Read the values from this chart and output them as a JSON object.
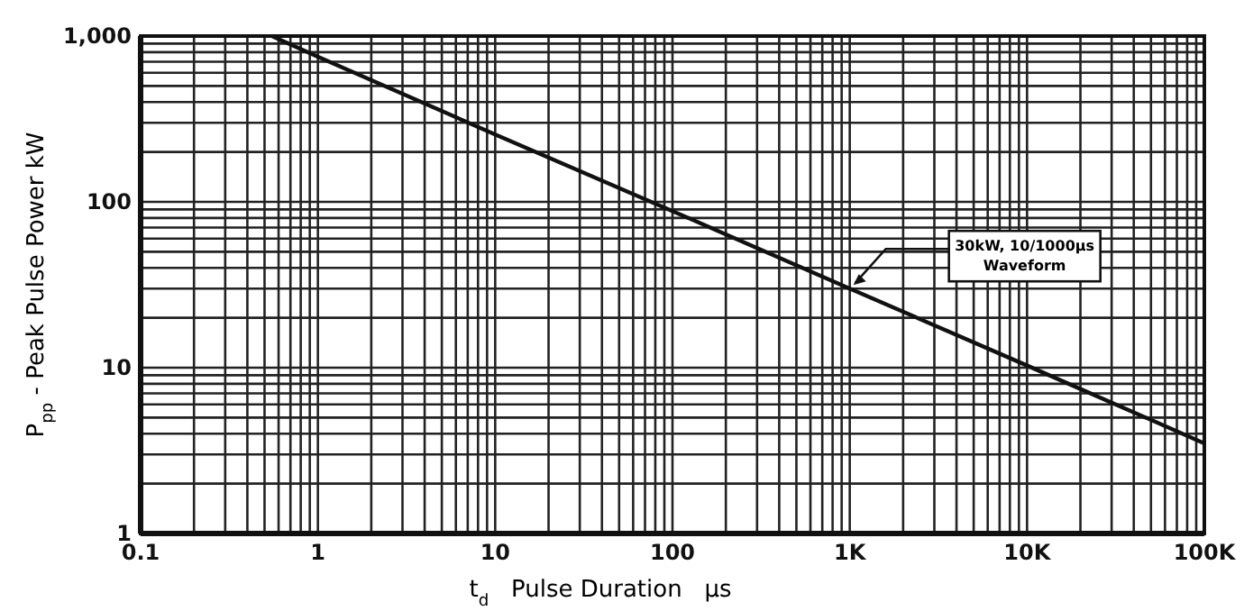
{
  "chart_data": {
    "type": "line",
    "xlabel": "t$_{d}$   Pulse Duration   µs",
    "ylabel": "P$_{pp}$ - Peak Pulse Power kW",
    "log": "xy",
    "grid": true,
    "marker": "none",
    "line_style": "solid",
    "xlim": [
      0.1,
      100000
    ],
    "ylim": [
      1,
      1000
    ],
    "xticks": [
      0.1,
      {
        "value": 0.2,
        "label": null
      },
      {
        "value": 0.3,
        "label": null
      },
      {
        "value": 0.4,
        "label": null
      },
      {
        "value": 0.5,
        "label": null
      },
      {
        "value": 0.6,
        "label": null
      },
      {
        "value": 0.7,
        "label": null
      },
      {
        "value": 0.8,
        "label": null
      },
      {
        "value": 0.9,
        "label": null
      },
      1,
      {
        "value": 2,
        "label": null
      },
      {
        "value": 3,
        "label": null
      },
      {
        "value": 4,
        "label": null
      },
      {
        "value": 5,
        "label": null
      },
      {
        "value": 6,
        "label": null
      },
      {
        "value": 7,
        "label": null
      },
      {
        "value": 8,
        "label": null
      },
      {
        "value": 9,
        "label": null
      },
      10,
      {
        "value": 20,
        "label": null
      },
      {
        "value": 30,
        "label": null
      },
      {
        "value": 40,
        "label": null
      },
      {
        "value": 50,
        "label": null
      },
      {
        "value": 60,
        "label": null
      },
      {
        "value": 70,
        "label": null
      },
      {
        "value": 80,
        "label": null
      },
      {
        "value": 90,
        "label": null
      },
      100,
      {
        "value": 200,
        "label": null
      },
      {
        "value": 300,
        "label": null
      },
      {
        "value": 400,
        "label": null
      },
      {
        "value": 500,
        "label": null
      },
      {
        "value": 600,
        "label": null
      },
      {
        "value": 700,
        "label": null
      },
      {
        "value": 800,
        "label": null
      },
      {
        "value": 900,
        "label": null
      },
      {
        "value": 1000,
        "label": "1K"
      },
      {
        "value": 2000,
        "label": null
      },
      {
        "value": 3000,
        "label": null
      },
      {
        "value": 4000,
        "label": null
      },
      {
        "value": 5000,
        "label": null
      },
      {
        "value": 6000,
        "label": null
      },
      {
        "value": 7000,
        "label": null
      },
      {
        "value": 8000,
        "label": null
      },
      {
        "value": 9000,
        "label": null
      },
      {
        "value": 10000,
        "label": "10K"
      },
      {
        "value": 20000,
        "label": null
      },
      {
        "value": 30000,
        "label": null
      },
      {
        "value": 40000,
        "label": null
      },
      {
        "value": 50000,
        "label": null
      },
      {
        "value": 60000,
        "label": null
      },
      {
        "value": 70000,
        "label": null
      },
      {
        "value": 80000,
        "label": null
      },
      {
        "value": 90000,
        "label": null
      },
      {
        "value": 100000,
        "label": "100K"
      }
    ],
    "yticks": [
      1,
      {
        "value": 2,
        "label": null
      },
      {
        "value": 3,
        "label": null
      },
      {
        "value": 4,
        "label": null
      },
      {
        "value": 5,
        "label": null
      },
      {
        "value": 6,
        "label": null
      },
      {
        "value": 7,
        "label": null
      },
      {
        "value": 8,
        "label": null
      },
      {
        "value": 9,
        "label": null
      },
      10,
      {
        "value": 20,
        "label": null
      },
      {
        "value": 30,
        "label": null
      },
      {
        "value": 40,
        "label": null
      },
      {
        "value": 50,
        "label": null
      },
      {
        "value": 60,
        "label": null
      },
      {
        "value": 70,
        "label": null
      },
      {
        "value": 80,
        "label": null
      },
      {
        "value": 90,
        "label": null
      },
      100,
      {
        "value": 200,
        "label": null
      },
      {
        "value": 300,
        "label": null
      },
      {
        "value": 400,
        "label": null
      },
      {
        "value": 500,
        "label": null
      },
      {
        "value": 600,
        "label": null
      },
      {
        "value": 700,
        "label": null
      },
      {
        "value": 800,
        "label": null
      },
      {
        "value": 900,
        "label": null
      },
      {
        "value": 1000,
        "label": "1,000"
      }
    ],
    "series": [
      {
        "color": "#111111",
        "x": [
          0.55,
          1,
          10,
          100,
          1000,
          10000,
          100000
        ],
        "values": [
          1000,
          750,
          255,
          88,
          30,
          10.3,
          3.5
        ]
      }
    ],
    "annotations": [
      {
        "text": "30kW, 10/1000µs Waveform",
        "x": 1000,
        "y": 30
      }
    ]
  }
}
